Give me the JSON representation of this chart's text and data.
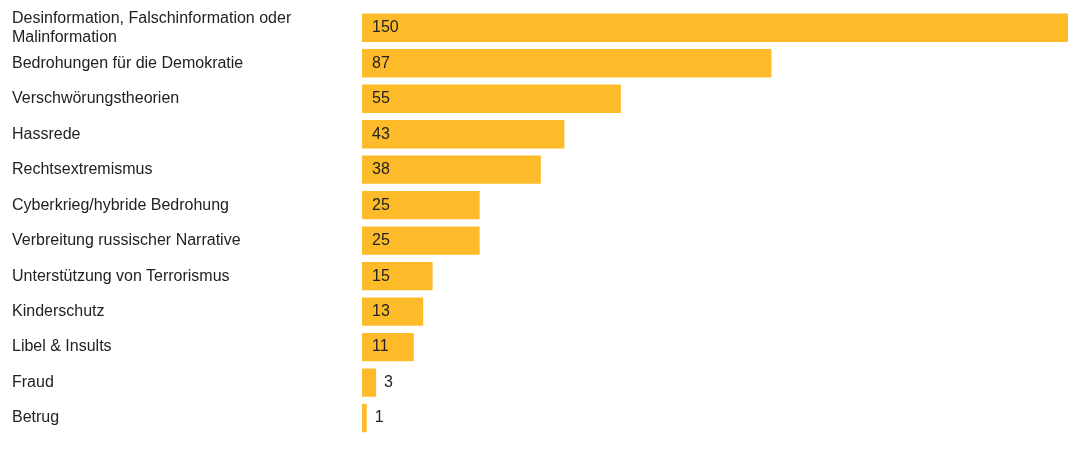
{
  "chart_data": {
    "type": "bar",
    "orientation": "horizontal",
    "categories": [
      "Desinformation, Falschinformation oder Malinformation",
      "Bedrohungen für die Demokratie",
      "Verschwörungstheorien",
      "Hassrede",
      "Rechtsextremismus",
      "Cyberkrieg/hybride Bedrohung",
      "Verbreitung russischer Narrative",
      "Unterstützung von Terrorismus",
      "Kinderschutz",
      "Libel & Insults",
      "Fraud",
      "Betrug"
    ],
    "values": [
      150,
      87,
      55,
      43,
      38,
      25,
      25,
      15,
      13,
      11,
      3,
      1
    ],
    "color": "#fdbb2a",
    "data_labels": true
  }
}
